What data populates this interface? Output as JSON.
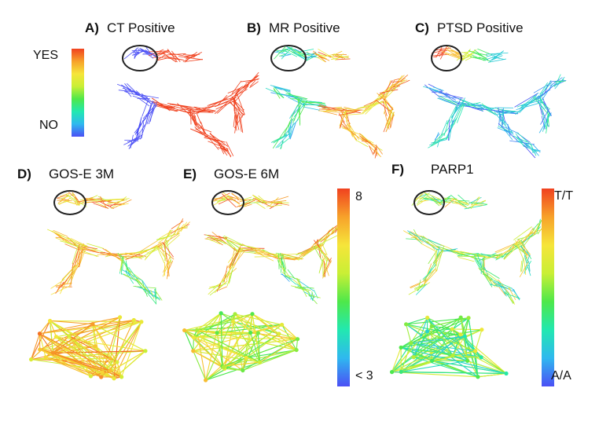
{
  "panels": [
    {
      "letter": "A)",
      "title": "CT Positive"
    },
    {
      "letter": "B)",
      "title": "MR Positive"
    },
    {
      "letter": "C)",
      "title": "PTSD Positive"
    },
    {
      "letter": "D)",
      "title": "GOS-E 3M"
    },
    {
      "letter": "E)",
      "title": "GOS-E 6M"
    },
    {
      "letter": "F)",
      "title": "PARP1"
    }
  ],
  "scale_yes_no": {
    "top": "YES",
    "bottom": "NO"
  },
  "scale_gose": {
    "top": "8",
    "bottom": "< 3"
  },
  "scale_parp1": {
    "top": "T/T",
    "bottom": "A/A"
  },
  "colors": {
    "gradient": [
      "#4b4ff5",
      "#2fb8ef",
      "#22e8b0",
      "#4ee84a",
      "#c9ef35",
      "#f6e53a",
      "#f7a12a",
      "#f0421f"
    ]
  }
}
